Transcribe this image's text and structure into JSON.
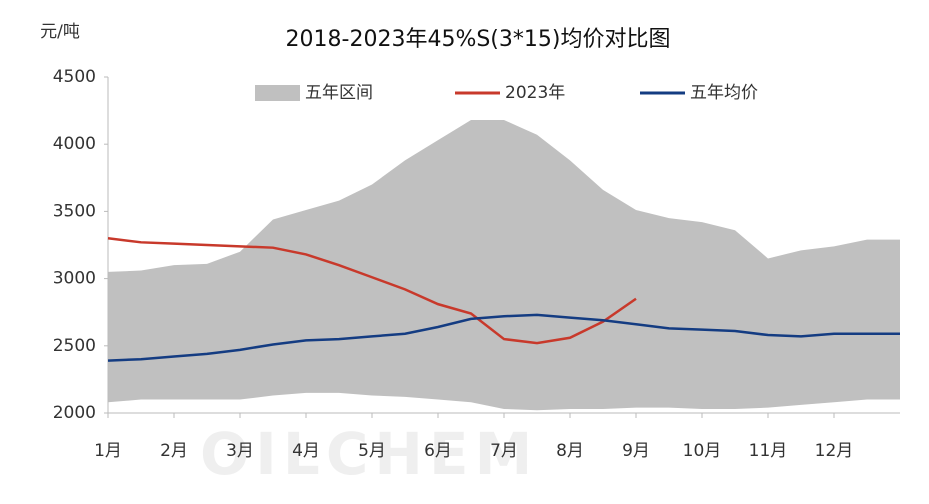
{
  "chart_data": {
    "type": "line",
    "title": "2018-2023年45%S(3*15)均价对比图",
    "y_label": "元/吨",
    "watermark": "OILCHEM",
    "x": [
      1,
      1.5,
      2,
      2.5,
      3,
      3.5,
      4,
      4.5,
      5,
      5.5,
      6,
      6.5,
      7,
      7.5,
      8,
      8.5,
      9,
      9.5,
      10,
      10.5,
      11,
      11.5,
      12,
      12.5,
      13
    ],
    "xlim": [
      1,
      13
    ],
    "xticks": [
      {
        "value": 1,
        "label": "1月"
      },
      {
        "value": 2,
        "label": "2月"
      },
      {
        "value": 3,
        "label": "3月"
      },
      {
        "value": 4,
        "label": "4月"
      },
      {
        "value": 5,
        "label": "5月"
      },
      {
        "value": 6,
        "label": "6月"
      },
      {
        "value": 7,
        "label": "7月"
      },
      {
        "value": 8,
        "label": "8月"
      },
      {
        "value": 9,
        "label": "9月"
      },
      {
        "value": 10,
        "label": "10月"
      },
      {
        "value": 11,
        "label": "11月"
      },
      {
        "value": 12,
        "label": "12月"
      }
    ],
    "ylim": [
      2000,
      4500
    ],
    "yticks": [
      2000,
      2500,
      3000,
      3500,
      4000,
      4500
    ],
    "band": {
      "name": "五年区间",
      "color": "#c0c0c0",
      "lower": [
        2080,
        2100,
        2100,
        2100,
        2100,
        2130,
        2150,
        2150,
        2130,
        2120,
        2100,
        2080,
        2030,
        2020,
        2030,
        2030,
        2040,
        2040,
        2030,
        2030,
        2040,
        2060,
        2080,
        2100,
        2100
      ],
      "upper": [
        3050,
        3060,
        3100,
        3110,
        3200,
        3440,
        3510,
        3580,
        3700,
        3880,
        4030,
        4180,
        4180,
        4070,
        3880,
        3660,
        3510,
        3450,
        3420,
        3360,
        3150,
        3210,
        3240,
        3290,
        3290
      ]
    },
    "series": [
      {
        "name": "2023年",
        "color": "#c8392b",
        "values": [
          3300,
          3270,
          3260,
          3250,
          3240,
          3230,
          3180,
          3100,
          3010,
          2920,
          2810,
          2740,
          2550,
          2520,
          2560,
          2680,
          2850,
          null,
          null,
          null,
          null,
          null,
          null,
          null,
          null
        ]
      },
      {
        "name": "五年均价",
        "color": "#143c82",
        "values": [
          2390,
          2400,
          2420,
          2440,
          2470,
          2510,
          2540,
          2550,
          2570,
          2590,
          2640,
          2700,
          2720,
          2730,
          2710,
          2690,
          2660,
          2630,
          2620,
          2610,
          2580,
          2570,
          2590,
          2590,
          2590
        ]
      }
    ]
  }
}
